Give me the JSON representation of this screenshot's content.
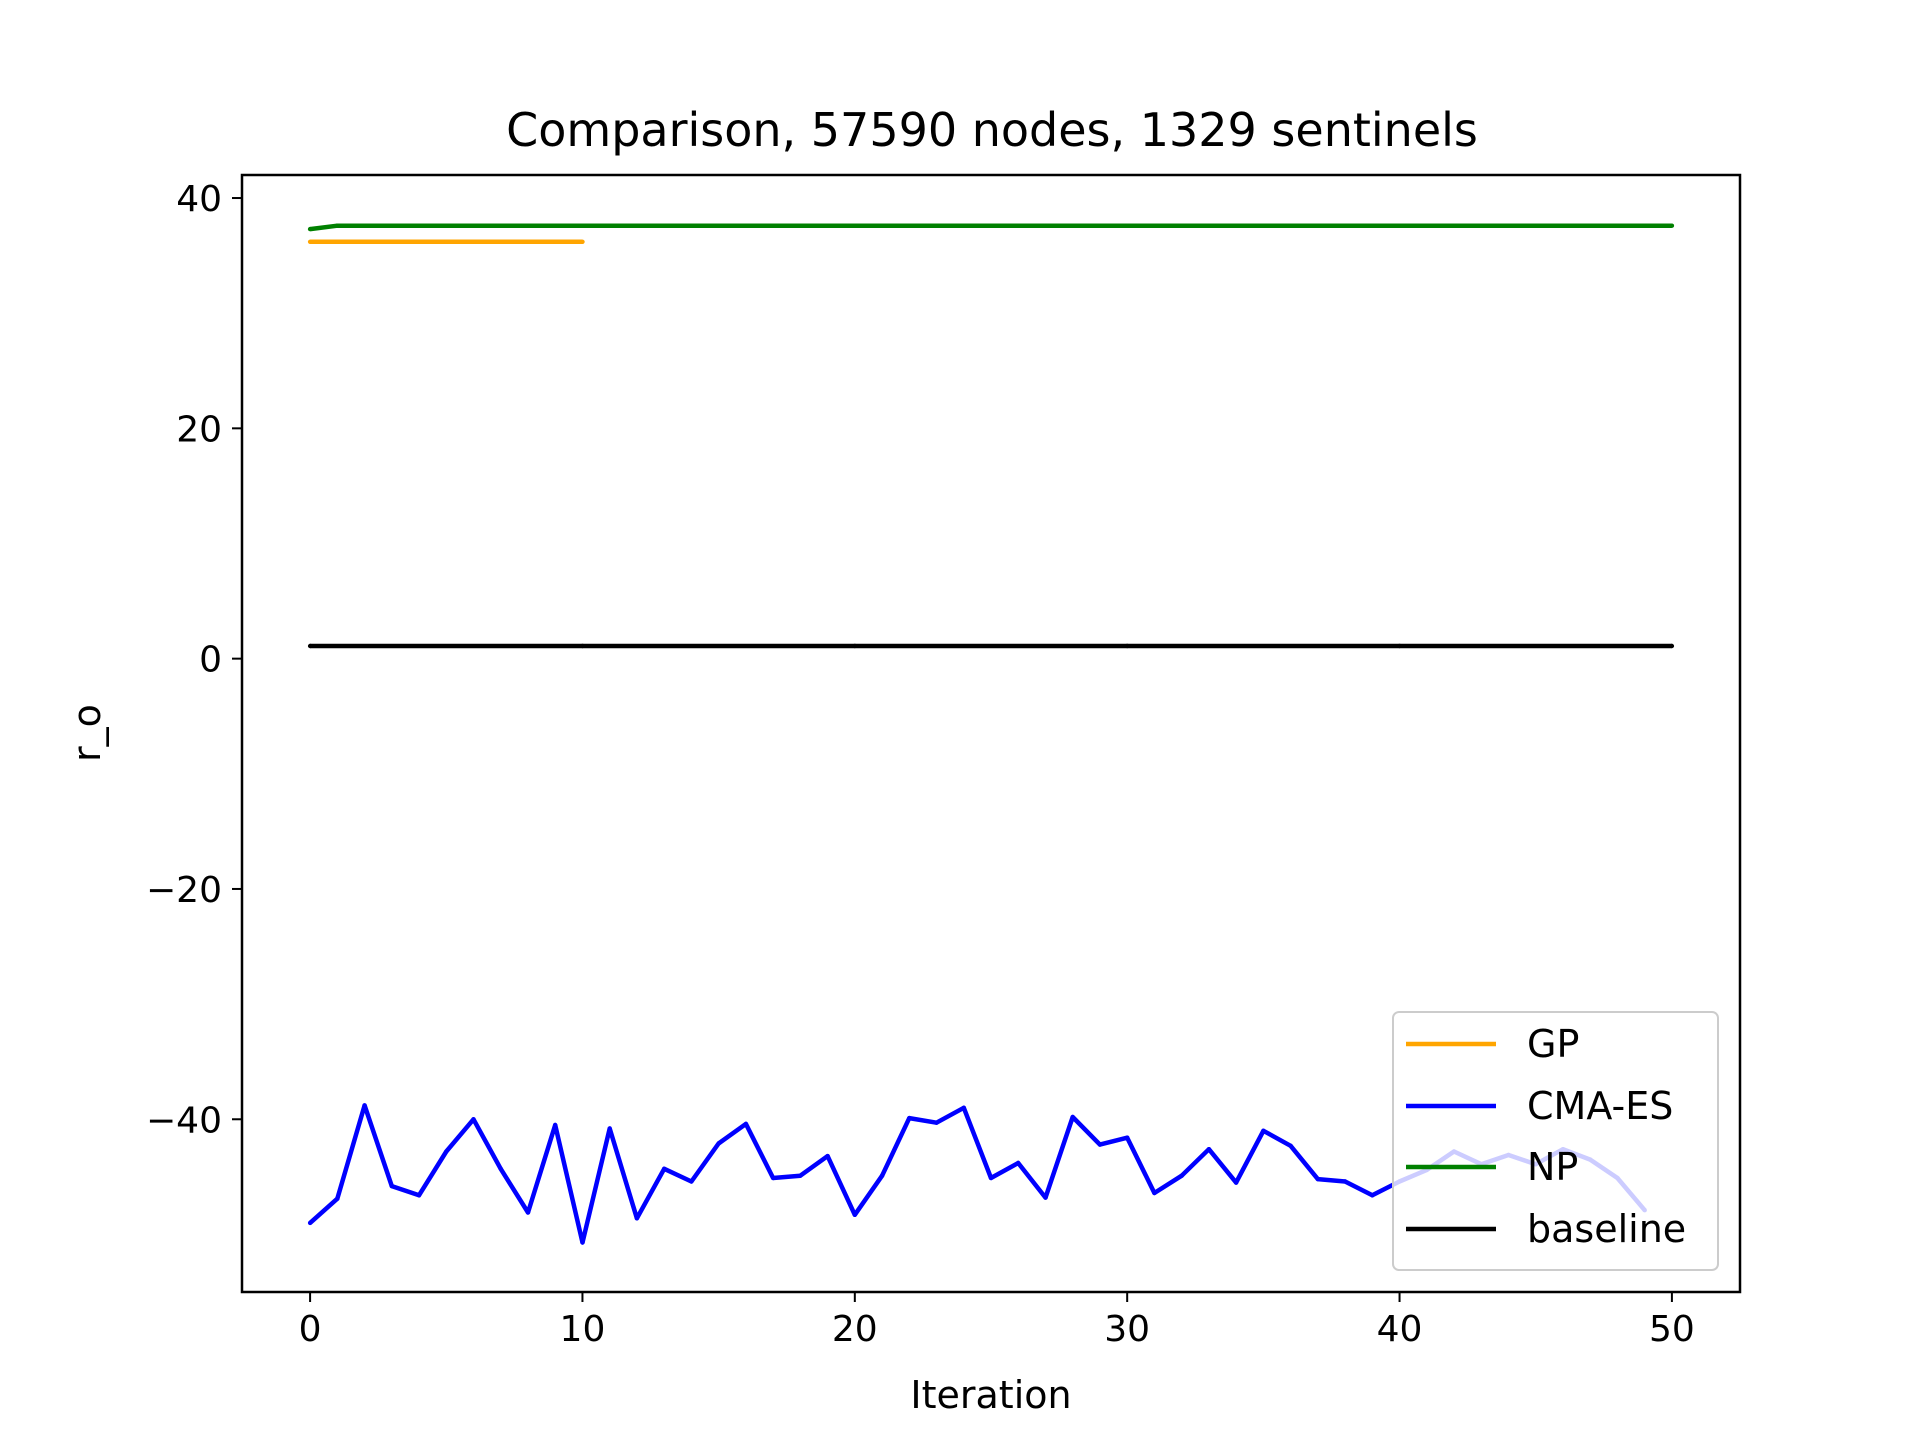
{
  "chart_data": {
    "type": "line",
    "title": "Comparison, 57590 nodes, 1329 sentinels",
    "xlabel": "Iteration",
    "ylabel": "r_o",
    "xlim": [
      -2.5,
      52.5
    ],
    "ylim": [
      -55.0,
      42.0
    ],
    "xticks": [
      0,
      10,
      20,
      30,
      40,
      50
    ],
    "yticks": [
      -40,
      -20,
      0,
      20,
      40
    ],
    "ytick_labels": [
      "−40",
      "−20",
      "0",
      "20",
      "40"
    ],
    "grid": false,
    "legend_location": "lower-right",
    "series": [
      {
        "name": "GP",
        "color": "#ffa500",
        "x": [
          0,
          1,
          2,
          3,
          4,
          5,
          6,
          7,
          8,
          9,
          10
        ],
        "y": [
          36.2,
          36.2,
          36.2,
          36.2,
          36.2,
          36.2,
          36.2,
          36.2,
          36.2,
          36.2,
          36.2
        ]
      },
      {
        "name": "CMA-ES",
        "color": "#0000ff",
        "x": [
          0,
          1,
          2,
          3,
          4,
          5,
          6,
          7,
          8,
          9,
          10,
          11,
          12,
          13,
          14,
          15,
          16,
          17,
          18,
          19,
          20,
          21,
          22,
          23,
          24,
          25,
          26,
          27,
          28,
          29,
          30,
          31,
          32,
          33,
          34,
          35,
          36,
          37,
          38,
          39,
          40,
          41,
          42,
          43,
          44,
          45,
          46,
          47,
          48,
          49
        ],
        "y": [
          -49.0,
          -46.9,
          -38.8,
          -45.8,
          -46.6,
          -42.8,
          -40.0,
          -44.3,
          -48.1,
          -40.5,
          -50.7,
          -40.8,
          -48.6,
          -44.3,
          -45.4,
          -42.1,
          -40.4,
          -45.1,
          -44.9,
          -43.2,
          -48.3,
          -44.9,
          -39.9,
          -40.3,
          -39.0,
          -45.1,
          -43.8,
          -46.8,
          -39.8,
          -42.2,
          -41.6,
          -46.4,
          -44.9,
          -42.6,
          -45.5,
          -41.0,
          -42.3,
          -45.2,
          -45.4,
          -46.6,
          -45.4,
          -44.4,
          -42.8,
          -43.9,
          -43.1,
          -43.9,
          -42.6,
          -43.5,
          -45.1,
          -47.9
        ]
      },
      {
        "name": "NP",
        "color": "#008000",
        "x": [
          0,
          1,
          2,
          10,
          20,
          30,
          40,
          50
        ],
        "y": [
          37.3,
          37.6,
          37.6,
          37.6,
          37.6,
          37.6,
          37.6,
          37.6
        ]
      },
      {
        "name": "baseline",
        "color": "#000000",
        "x": [
          0,
          10,
          20,
          30,
          40,
          50
        ],
        "y": [
          1.1,
          1.1,
          1.1,
          1.1,
          1.1,
          1.1
        ]
      }
    ]
  }
}
